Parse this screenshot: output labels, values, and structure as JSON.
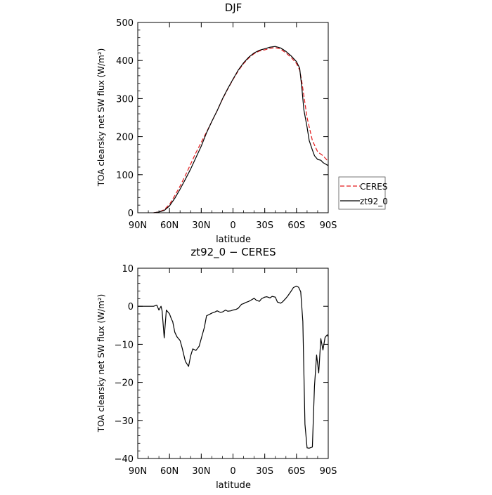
{
  "chart_data": [
    {
      "type": "line",
      "title": "DJF",
      "xlabel": "latitude",
      "ylabel": "TOA clearsky net SW flux (W/m²)",
      "xlim": [
        -90,
        90
      ],
      "ylim": [
        0,
        500
      ],
      "xticks": [
        -90,
        -60,
        -30,
        0,
        30,
        60,
        90
      ],
      "xtick_labels": [
        "90N",
        "60N",
        "30N",
        "0",
        "30S",
        "60S",
        "90S"
      ],
      "yticks": [
        0,
        100,
        200,
        300,
        400,
        500
      ],
      "ytick_labels": [
        "0",
        "100",
        "200",
        "300",
        "400",
        "500"
      ],
      "grid": false,
      "legend_position": "right, outside plot",
      "series": [
        {
          "name": "CERES",
          "color": "#e31a1c",
          "dash": "dashed",
          "x": [
            -75,
            -70,
            -65,
            -60,
            -55,
            -50,
            -45,
            -40,
            -35,
            -30,
            -25,
            -20,
            -15,
            -10,
            -5,
            0,
            5,
            10,
            15,
            20,
            25,
            30,
            35,
            40,
            45,
            50,
            55,
            60,
            63,
            65,
            70,
            75,
            80,
            85,
            90
          ],
          "y": [
            0,
            2,
            8,
            22,
            45,
            70,
            98,
            128,
            158,
            185,
            212,
            240,
            268,
            298,
            325,
            350,
            373,
            392,
            407,
            418,
            425,
            428,
            432,
            434,
            430,
            420,
            408,
            392,
            375,
            345,
            250,
            190,
            160,
            150,
            135
          ]
        },
        {
          "name": "zt92_0",
          "color": "#000000",
          "dash": "solid",
          "x": [
            -75,
            -70,
            -65,
            -60,
            -55,
            -50,
            -45,
            -40,
            -35,
            -30,
            -25,
            -20,
            -15,
            -10,
            -5,
            0,
            5,
            10,
            15,
            20,
            25,
            30,
            35,
            40,
            45,
            50,
            55,
            60,
            63,
            65,
            67,
            70,
            72,
            75,
            77,
            80,
            83,
            85,
            88,
            90
          ],
          "y": [
            0,
            2,
            6,
            18,
            38,
            62,
            88,
            115,
            145,
            175,
            210,
            240,
            268,
            299,
            326,
            351,
            375,
            394,
            409,
            420,
            427,
            431,
            435,
            437,
            433,
            424,
            412,
            397,
            380,
            330,
            270,
            225,
            190,
            165,
            150,
            140,
            138,
            132,
            127,
            124
          ]
        }
      ]
    },
    {
      "type": "line",
      "title": "zt92_0 − CERES",
      "xlabel": "latitude",
      "ylabel": "TOA clearsky net SW flux (W/m²)",
      "xlim": [
        -90,
        90
      ],
      "ylim": [
        -40,
        10
      ],
      "xticks": [
        -90,
        -60,
        -30,
        0,
        30,
        60,
        90
      ],
      "xtick_labels": [
        "90N",
        "60N",
        "30N",
        "0",
        "30S",
        "60S",
        "90S"
      ],
      "yticks": [
        -40,
        -30,
        -20,
        -10,
        0,
        10
      ],
      "ytick_labels": [
        "−40",
        "−30",
        "−20",
        "−10",
        "0",
        "10"
      ],
      "grid": false,
      "series": [
        {
          "color": "#000000",
          "dash": "solid",
          "x": [
            -90,
            -75,
            -72,
            -70,
            -68,
            -67,
            -65,
            -63,
            -60,
            -58,
            -57,
            -55,
            -53,
            -50,
            -48,
            -45,
            -42,
            -40,
            -38,
            -35,
            -32,
            -30,
            -27,
            -25,
            -22,
            -20,
            -17,
            -15,
            -12,
            -10,
            -7,
            -5,
            -2,
            0,
            3,
            5,
            8,
            10,
            12,
            15,
            17,
            20,
            22,
            25,
            27,
            30,
            32,
            35,
            37,
            40,
            42,
            45,
            47,
            50,
            52,
            55,
            57,
            60,
            62,
            64,
            66,
            68,
            70,
            72,
            75,
            77,
            79,
            81,
            83,
            85,
            87,
            89,
            90
          ],
          "y": [
            0,
            0,
            0.3,
            -1,
            0,
            -1.2,
            -8.3,
            -1,
            -2,
            -3.5,
            -4,
            -6.8,
            -8,
            -9,
            -11,
            -14.5,
            -15.8,
            -13,
            -11.2,
            -11.6,
            -10.5,
            -8.5,
            -5.5,
            -2.5,
            -2.1,
            -1.8,
            -1.5,
            -1.2,
            -1.6,
            -1.5,
            -1,
            -1.3,
            -1.2,
            -1,
            -0.8,
            -0.5,
            0.5,
            0.7,
            1,
            1.3,
            1.6,
            2.1,
            1.6,
            1.3,
            2,
            2.4,
            2.5,
            2.2,
            2.6,
            2.4,
            1.1,
            0.8,
            1.2,
            2.1,
            2.8,
            4,
            4.9,
            5.3,
            5,
            3.8,
            -4,
            -31,
            -37.2,
            -37.3,
            -37,
            -21,
            -12.8,
            -17.5,
            -8.5,
            -11.5,
            -8.2,
            -7.5,
            -8
          ]
        }
      ]
    }
  ]
}
